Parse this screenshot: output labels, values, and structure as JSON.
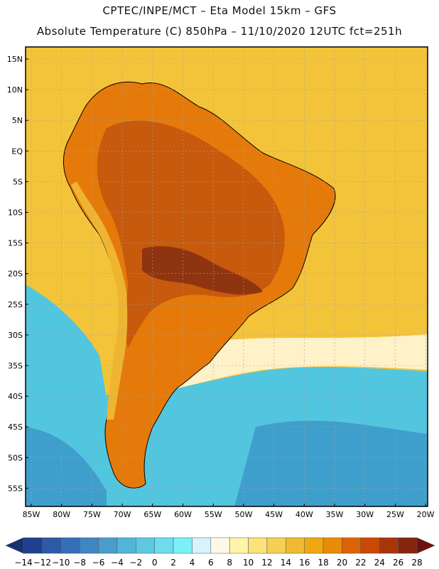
{
  "header": {
    "line1": "CPTEC/INPE/MCT –  Eta Model 15km – GFS",
    "line2": "Absolute Temperature (C) 850hPa – 11/10/2020 12UTC fct=251h"
  },
  "lat_labels": [
    "15N",
    "10N",
    "5N",
    "EQ",
    "5S",
    "10S",
    "15S",
    "20S",
    "25S",
    "30S",
    "35S",
    "40S",
    "45S",
    "50S",
    "55S"
  ],
  "lon_labels": [
    "85W",
    "80W",
    "75W",
    "70W",
    "65W",
    "60W",
    "55W",
    "50W",
    "45W",
    "40W",
    "35W",
    "30W",
    "25W",
    "20W"
  ],
  "colorbar": {
    "ticks": [
      "-14",
      "-12",
      "-10",
      "-8",
      "-6",
      "-4",
      "-2",
      "0",
      "2",
      "4",
      "6",
      "8",
      "10",
      "12",
      "14",
      "16",
      "18",
      "20",
      "22",
      "24",
      "26",
      "28"
    ],
    "colors": [
      "#1f3f8f",
      "#2b5aa8",
      "#356fb8",
      "#3f86c2",
      "#4a9ccc",
      "#52b4d9",
      "#5ec8e3",
      "#6fdcee",
      "#7cf0f8",
      "#d6f4fb",
      "#fff8e4",
      "#fff4a8",
      "#fbe27a",
      "#f6cf55",
      "#f0bb32",
      "#eda812",
      "#e98c0a",
      "#dd6205",
      "#c84a05",
      "#a8340a",
      "#852510"
    ],
    "min_color": "#17306e",
    "max_color": "#6e1010"
  },
  "map_colors": {
    "ocean_warm": "#eda812",
    "ocean_mid": "#f3c43a",
    "ocean_pale": "#fff2c8",
    "ocean_cold": "#52c6df",
    "ocean_colder": "#3f9fcc",
    "land_warm": "#e57a0a",
    "land_hot": "#c75a0c",
    "land_hottest": "#8f3410",
    "andes": "#f0b530"
  }
}
